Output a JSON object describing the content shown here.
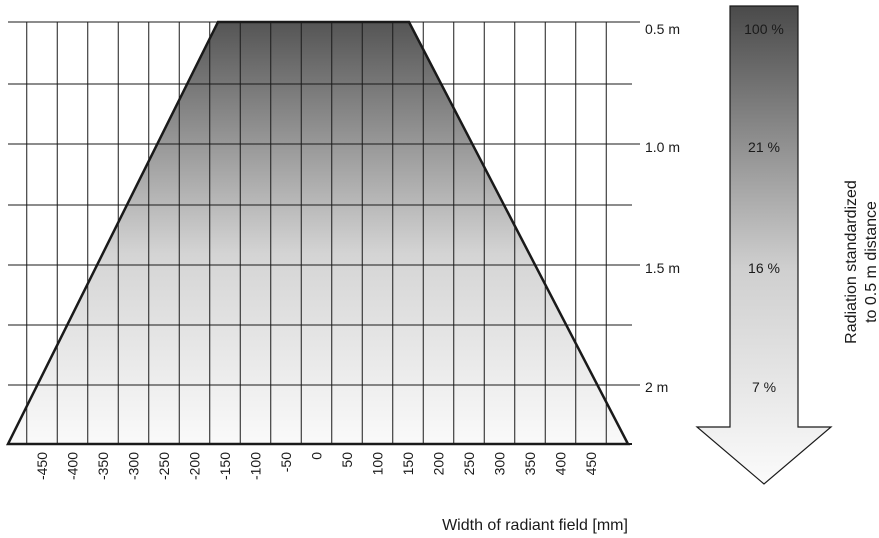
{
  "chart_data": {
    "type": "diagram",
    "xlabel": "Width of radiant field [mm]",
    "x_ticks": [
      "-450",
      "-400",
      "-350",
      "-300",
      "-250",
      "-200",
      "-150",
      "-100",
      "-50",
      "0",
      "50",
      "100",
      "150",
      "200",
      "250",
      "300",
      "350",
      "400",
      "450"
    ],
    "distance_labels": [
      "0.5 m",
      "1.0 m",
      "1.5 m",
      "2 m"
    ],
    "field_half_width_mm": [
      {
        "distance": "0.5 m",
        "half_width": 150
      },
      {
        "distance": "1.0 m",
        "half_width": 250
      },
      {
        "distance": "1.5 m",
        "half_width": 350
      },
      {
        "distance": "2 m",
        "half_width": 450
      }
    ],
    "radiation_levels": [
      "100 %",
      "21 %",
      "16 %",
      "7 %"
    ],
    "arrow_label_lines": [
      "Radiation standardized",
      "to 0.5 m distance"
    ]
  },
  "colors": {
    "field_dark": "#555555",
    "field_light": "#fafafa",
    "arrow_dark": "#4a4a4a",
    "arrow_light": "#fbfbfb",
    "lines": "#1a1a1a"
  }
}
